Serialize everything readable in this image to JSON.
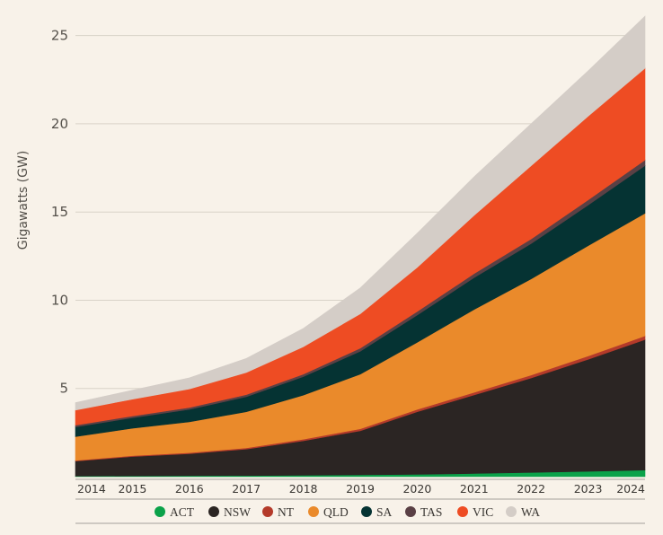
{
  "chart_data": {
    "type": "area",
    "stacked": true,
    "title": "",
    "xlabel": "",
    "ylabel": "Gigawatts (GW)",
    "x": [
      "2014",
      "2015",
      "2016",
      "2017",
      "2018",
      "2019",
      "2020",
      "2021",
      "2022",
      "2023",
      "2024"
    ],
    "ylim": [
      0,
      26
    ],
    "yticks": [
      5,
      10,
      15,
      20,
      25
    ],
    "grid": "horizontal",
    "legend": "bottom",
    "series": [
      {
        "name": "ACT",
        "color": "#0ba24a",
        "values": [
          0.03,
          0.04,
          0.05,
          0.06,
          0.08,
          0.1,
          0.13,
          0.18,
          0.24,
          0.3,
          0.37
        ]
      },
      {
        "name": "NSW",
        "color": "#2b2523",
        "values": [
          0.85,
          1.1,
          1.25,
          1.5,
          1.95,
          2.5,
          3.55,
          4.45,
          5.35,
          6.35,
          7.4
        ]
      },
      {
        "name": "NT",
        "color": "#b43a2a",
        "values": [
          0.04,
          0.05,
          0.06,
          0.07,
          0.09,
          0.11,
          0.13,
          0.15,
          0.17,
          0.19,
          0.21
        ]
      },
      {
        "name": "QLD",
        "color": "#ea8a2b",
        "values": [
          1.35,
          1.55,
          1.75,
          2.05,
          2.5,
          3.1,
          3.8,
          4.7,
          5.45,
          6.25,
          6.95
        ]
      },
      {
        "name": "SA",
        "color": "#053333",
        "values": [
          0.55,
          0.6,
          0.7,
          0.85,
          1.05,
          1.3,
          1.55,
          1.8,
          2.0,
          2.3,
          2.7
        ]
      },
      {
        "name": "TAS",
        "color": "#5a4045",
        "values": [
          0.1,
          0.1,
          0.11,
          0.12,
          0.14,
          0.17,
          0.2,
          0.23,
          0.26,
          0.29,
          0.32
        ]
      },
      {
        "name": "VIC",
        "color": "#ee4c23",
        "values": [
          0.85,
          0.95,
          1.05,
          1.25,
          1.55,
          1.95,
          2.5,
          3.3,
          4.15,
          4.75,
          5.2
        ]
      },
      {
        "name": "WA",
        "color": "#d4cdc7",
        "values": [
          0.43,
          0.51,
          0.63,
          0.8,
          1.04,
          1.47,
          1.94,
          2.19,
          2.38,
          2.57,
          2.95
        ]
      }
    ]
  }
}
